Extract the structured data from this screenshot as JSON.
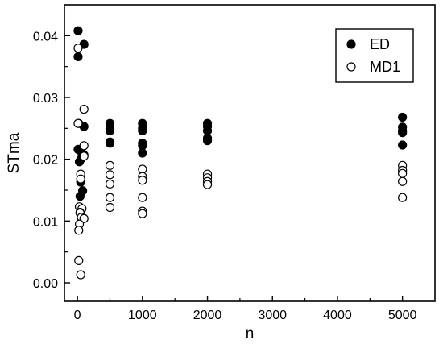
{
  "chart_data": {
    "type": "scatter",
    "xlabel": "n",
    "ylabel": "STma",
    "xlim": [
      -200,
      5500
    ],
    "ylim": [
      -0.003,
      0.045
    ],
    "xticks": [
      0,
      1000,
      2000,
      3000,
      4000,
      5000
    ],
    "xtick_labels": [
      "0",
      "1000",
      "2000",
      "3000",
      "4000",
      "5000"
    ],
    "yticks": [
      0.0,
      0.01,
      0.02,
      0.03,
      0.04
    ],
    "ytick_labels": [
      "0.00",
      "0.01",
      "0.02",
      "0.03",
      "0.04"
    ],
    "grid": false,
    "legend_position": "top-right",
    "series": [
      {
        "name": "ED",
        "marker": "filled-circle",
        "color": "#000000",
        "points": [
          [
            10,
            0.0408
          ],
          [
            10,
            0.0366
          ],
          [
            100,
            0.0386
          ],
          [
            20,
            0.0258
          ],
          [
            100,
            0.0253
          ],
          [
            10,
            0.0216
          ],
          [
            60,
            0.0212
          ],
          [
            100,
            0.0207
          ],
          [
            30,
            0.0196
          ],
          [
            60,
            0.0201
          ],
          [
            50,
            0.0163
          ],
          [
            80,
            0.0149
          ],
          [
            40,
            0.014
          ],
          [
            500,
            0.0258
          ],
          [
            500,
            0.025
          ],
          [
            500,
            0.0246
          ],
          [
            500,
            0.0228
          ],
          [
            500,
            0.0226
          ],
          [
            1000,
            0.0258
          ],
          [
            1000,
            0.025
          ],
          [
            1000,
            0.0246
          ],
          [
            1000,
            0.0226
          ],
          [
            1000,
            0.0222
          ],
          [
            1000,
            0.021
          ],
          [
            2000,
            0.0258
          ],
          [
            2000,
            0.0253
          ],
          [
            2000,
            0.0246
          ],
          [
            2000,
            0.0234
          ],
          [
            2000,
            0.023
          ],
          [
            5000,
            0.0268
          ],
          [
            5000,
            0.0252
          ],
          [
            5000,
            0.0246
          ],
          [
            5000,
            0.0243
          ],
          [
            5000,
            0.0223
          ]
        ]
      },
      {
        "name": "MD1",
        "marker": "open-circle",
        "color": "#000000",
        "points": [
          [
            10,
            0.038
          ],
          [
            100,
            0.0281
          ],
          [
            10,
            0.0258
          ],
          [
            100,
            0.0222
          ],
          [
            100,
            0.0205
          ],
          [
            50,
            0.0176
          ],
          [
            50,
            0.0168
          ],
          [
            30,
            0.0123
          ],
          [
            70,
            0.012
          ],
          [
            40,
            0.0114
          ],
          [
            40,
            0.0113
          ],
          [
            60,
            0.0106
          ],
          [
            100,
            0.0104
          ],
          [
            30,
            0.0095
          ],
          [
            20,
            0.0085
          ],
          [
            20,
            0.0036
          ],
          [
            50,
            0.0013
          ],
          [
            500,
            0.019
          ],
          [
            500,
            0.0175
          ],
          [
            500,
            0.016
          ],
          [
            500,
            0.0138
          ],
          [
            500,
            0.0122
          ],
          [
            1000,
            0.0184
          ],
          [
            1000,
            0.0172
          ],
          [
            1000,
            0.0166
          ],
          [
            1000,
            0.0138
          ],
          [
            1000,
            0.0116
          ],
          [
            1000,
            0.0112
          ],
          [
            2000,
            0.0176
          ],
          [
            2000,
            0.017
          ],
          [
            2000,
            0.0164
          ],
          [
            2000,
            0.0159
          ],
          [
            5000,
            0.019
          ],
          [
            5000,
            0.0182
          ],
          [
            5000,
            0.0177
          ],
          [
            5000,
            0.0164
          ],
          [
            5000,
            0.0138
          ]
        ]
      }
    ]
  }
}
